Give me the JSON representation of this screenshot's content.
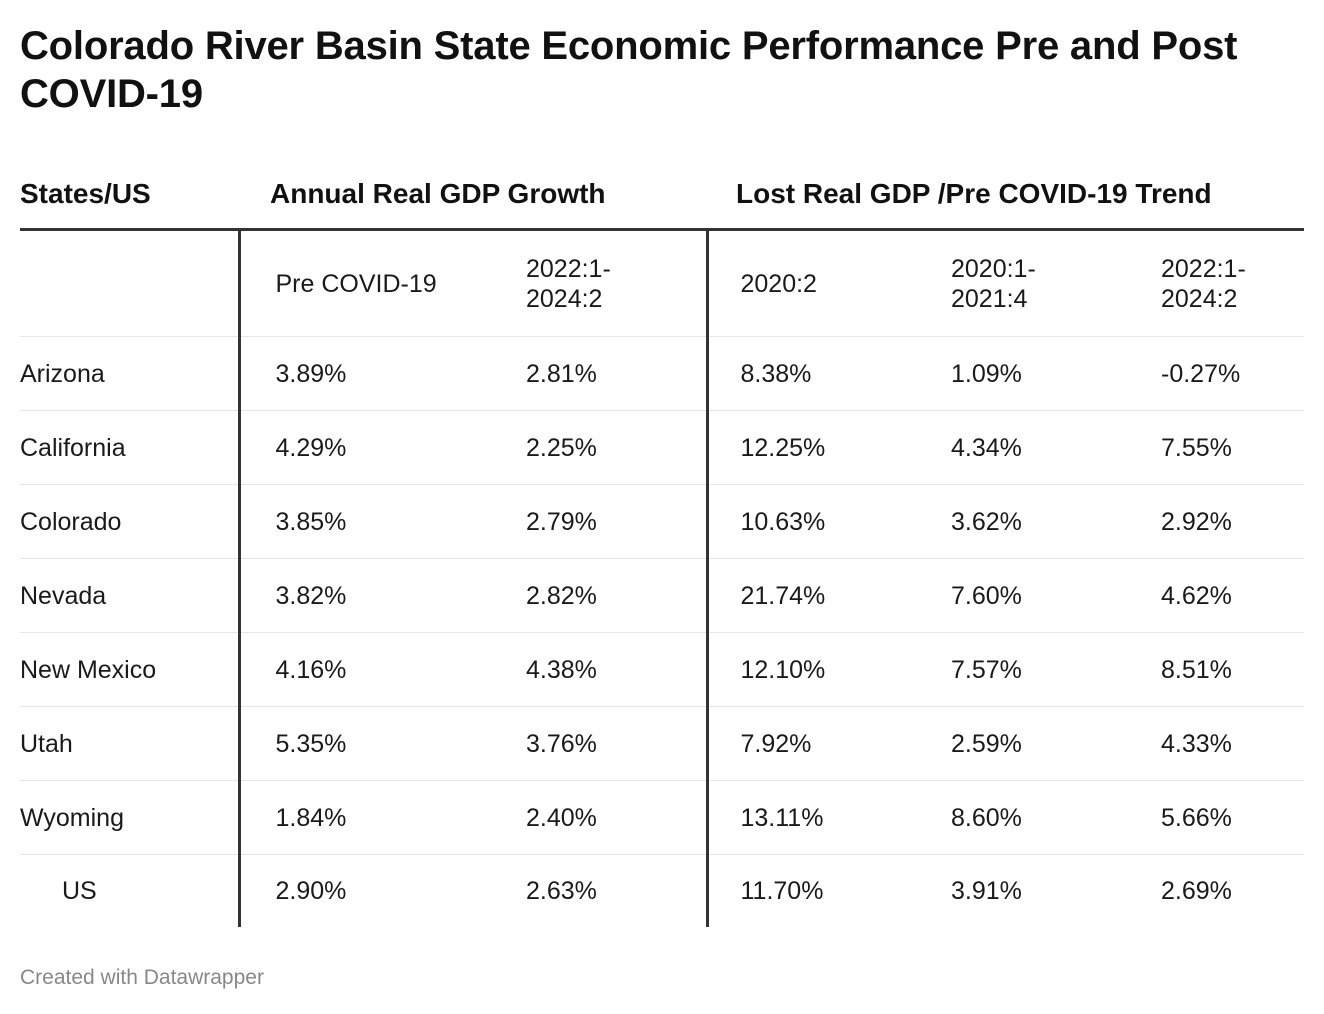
{
  "header": {
    "title": "Colorado River Basin State Economic Performance Pre and Post COVID-19"
  },
  "chart_data": {
    "type": "table",
    "title": "Colorado River Basin State Economic Performance Pre and Post COVID-19",
    "column_groups": [
      "States/US",
      "Annual Real GDP Growth",
      "Lost Real GDP /Pre COVID-19 Trend"
    ],
    "columns": [
      "",
      "Pre COVID-19",
      "2022:1-\n2024:2",
      "2020:2",
      "2020:1-\n2021:4",
      "2022:1-\n2024:2"
    ],
    "rows": [
      {
        "state": "Arizona",
        "values": [
          "3.89%",
          "2.81%",
          "8.38%",
          "1.09%",
          "-0.27%"
        ]
      },
      {
        "state": "California",
        "values": [
          "4.29%",
          "2.25%",
          "12.25%",
          "4.34%",
          "7.55%"
        ]
      },
      {
        "state": "Colorado",
        "values": [
          "3.85%",
          "2.79%",
          "10.63%",
          "3.62%",
          "2.92%"
        ]
      },
      {
        "state": "Nevada",
        "values": [
          "3.82%",
          "2.82%",
          "21.74%",
          "7.60%",
          "4.62%"
        ]
      },
      {
        "state": "New Mexico",
        "values": [
          "4.16%",
          "4.38%",
          "12.10%",
          "7.57%",
          "8.51%"
        ]
      },
      {
        "state": "Utah",
        "values": [
          "5.35%",
          "3.76%",
          "7.92%",
          "2.59%",
          "4.33%"
        ]
      },
      {
        "state": "Wyoming",
        "values": [
          "1.84%",
          "2.40%",
          "13.11%",
          "8.60%",
          "5.66%"
        ]
      },
      {
        "state": "US",
        "values": [
          "2.90%",
          "2.63%",
          "11.70%",
          "3.91%",
          "2.69%"
        ]
      }
    ]
  },
  "footer": {
    "credit": "Created with Datawrapper"
  }
}
